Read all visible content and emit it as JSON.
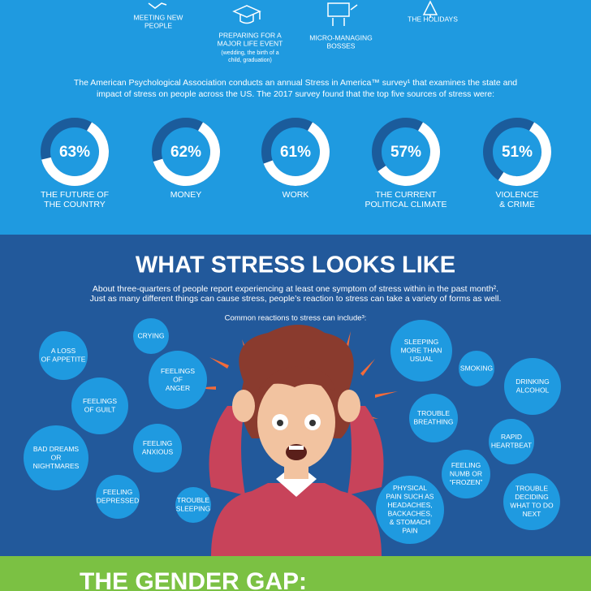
{
  "top_icons": [
    {
      "lines": [
        "MEETING NEW",
        "PEOPLE"
      ]
    },
    {
      "lines": [
        "PREPARING FOR A",
        "MAJOR LIFE EVENT"
      ],
      "note": [
        "(wedding, the birth of a",
        "child, graduation)"
      ]
    },
    {
      "lines": [
        "MICRO-MANAGING",
        "BOSSES"
      ]
    },
    {
      "lines": [
        "THE HOLIDAYS"
      ]
    }
  ],
  "intro": [
    "The American Psychological Association conducts an annual Stress in America™ survey¹ that examines the state and",
    "impact of stress on people across the US. The 2017 survey found that the top five sources of stress were:"
  ],
  "stats": [
    {
      "value": 63,
      "value_label": "63%",
      "lines": [
        "THE FUTURE OF",
        "THE COUNTRY"
      ]
    },
    {
      "value": 62,
      "value_label": "62%",
      "lines": [
        "MONEY"
      ]
    },
    {
      "value": 61,
      "value_label": "61%",
      "lines": [
        "WORK"
      ]
    },
    {
      "value": 57,
      "value_label": "57%",
      "lines": [
        "THE CURRENT",
        "POLITICAL CLIMATE"
      ]
    },
    {
      "value": 51,
      "value_label": "51%",
      "lines": [
        "VIOLENCE",
        "& CRIME"
      ]
    }
  ],
  "looks": {
    "title": "WHAT STRESS LOOKS LIKE",
    "text": [
      "About three-quarters of people report experiencing at least one symptom of stress within in the past month².",
      "Just as many different things can cause stress, people’s reaction to stress can take a variety of forms as well."
    ],
    "subtitle": "Common reactions to stress can include³:",
    "reactions": [
      {
        "lines": [
          "CRYING"
        ]
      },
      {
        "lines": [
          "A LOSS",
          "OF APPETITE"
        ]
      },
      {
        "lines": [
          "FEELINGS",
          "OF",
          "ANGER"
        ]
      },
      {
        "lines": [
          "FEELINGS",
          "OF GUILT"
        ]
      },
      {
        "lines": [
          "BAD DREAMS",
          "OR",
          "NIGHTMARES"
        ]
      },
      {
        "lines": [
          "FEELING",
          "ANXIOUS"
        ]
      },
      {
        "lines": [
          "FEELING",
          "DEPRESSED"
        ]
      },
      {
        "lines": [
          "TROUBLE",
          "SLEEPING"
        ]
      },
      {
        "lines": [
          "SLEEPING",
          "MORE THAN",
          "USUAL"
        ]
      },
      {
        "lines": [
          "SMOKING"
        ]
      },
      {
        "lines": [
          "DRINKING",
          "ALCOHOL"
        ]
      },
      {
        "lines": [
          "TROUBLE",
          "BREATHING"
        ]
      },
      {
        "lines": [
          "RAPID",
          "HEARTBEAT"
        ]
      },
      {
        "lines": [
          "FEELING",
          "NUMB OR",
          "“FROZEN”"
        ]
      },
      {
        "lines": [
          "PHYSICAL",
          "PAIN SUCH AS",
          "HEADACHES,",
          "BACKACHES,",
          "& STOMACH",
          "PAIN"
        ]
      },
      {
        "lines": [
          "TROUBLE",
          "DECIDING",
          "WHAT TO DO",
          "NEXT"
        ]
      }
    ]
  },
  "gender": {
    "title": "THE GENDER GAP:"
  }
}
